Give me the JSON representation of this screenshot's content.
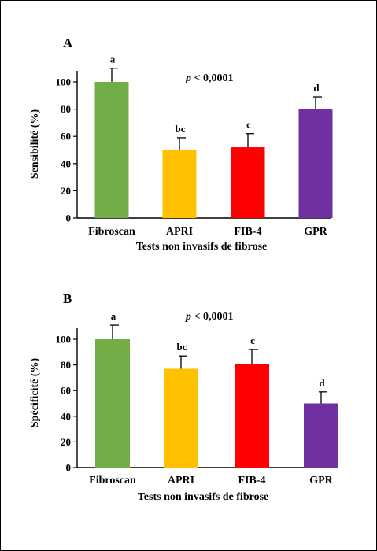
{
  "chart_data": [
    {
      "type": "bar",
      "panel": "A",
      "categories": [
        "Fibroscan",
        "APRI",
        "FIB-4",
        "GPR"
      ],
      "values": [
        100,
        50,
        52,
        80
      ],
      "errors": [
        10,
        9,
        10,
        9
      ],
      "significance_letters": [
        "a",
        "bc",
        "c",
        "d"
      ],
      "bar_colors": [
        "#70ad47",
        "#ffc000",
        "#ff0000",
        "#7030a0"
      ],
      "annotation_italic": "p",
      "annotation_rest": " < 0,0001",
      "xlabel": "Tests non invasifs de fibrose",
      "ylabel": "Sensibilité (%)",
      "ylim": [
        0,
        100
      ],
      "yticks": [
        0,
        20,
        40,
        60,
        80,
        100
      ],
      "grid": false
    },
    {
      "type": "bar",
      "panel": "B",
      "categories": [
        "Fibroscan",
        "APRI",
        "FIB-4",
        "GPR"
      ],
      "values": [
        100,
        77,
        81,
        50
      ],
      "errors": [
        11,
        10,
        11,
        9
      ],
      "significance_letters": [
        "a",
        "bc",
        "c",
        "d"
      ],
      "bar_colors": [
        "#70ad47",
        "#ffc000",
        "#ff0000",
        "#7030a0"
      ],
      "annotation_italic": "p",
      "annotation_rest": " < 0,0001",
      "xlabel": "Tests non invasifs de fibrose",
      "ylabel": "Spécificité (%)",
      "ylim": [
        0,
        100
      ],
      "yticks": [
        0,
        20,
        40,
        60,
        80,
        100
      ],
      "grid": false
    }
  ]
}
